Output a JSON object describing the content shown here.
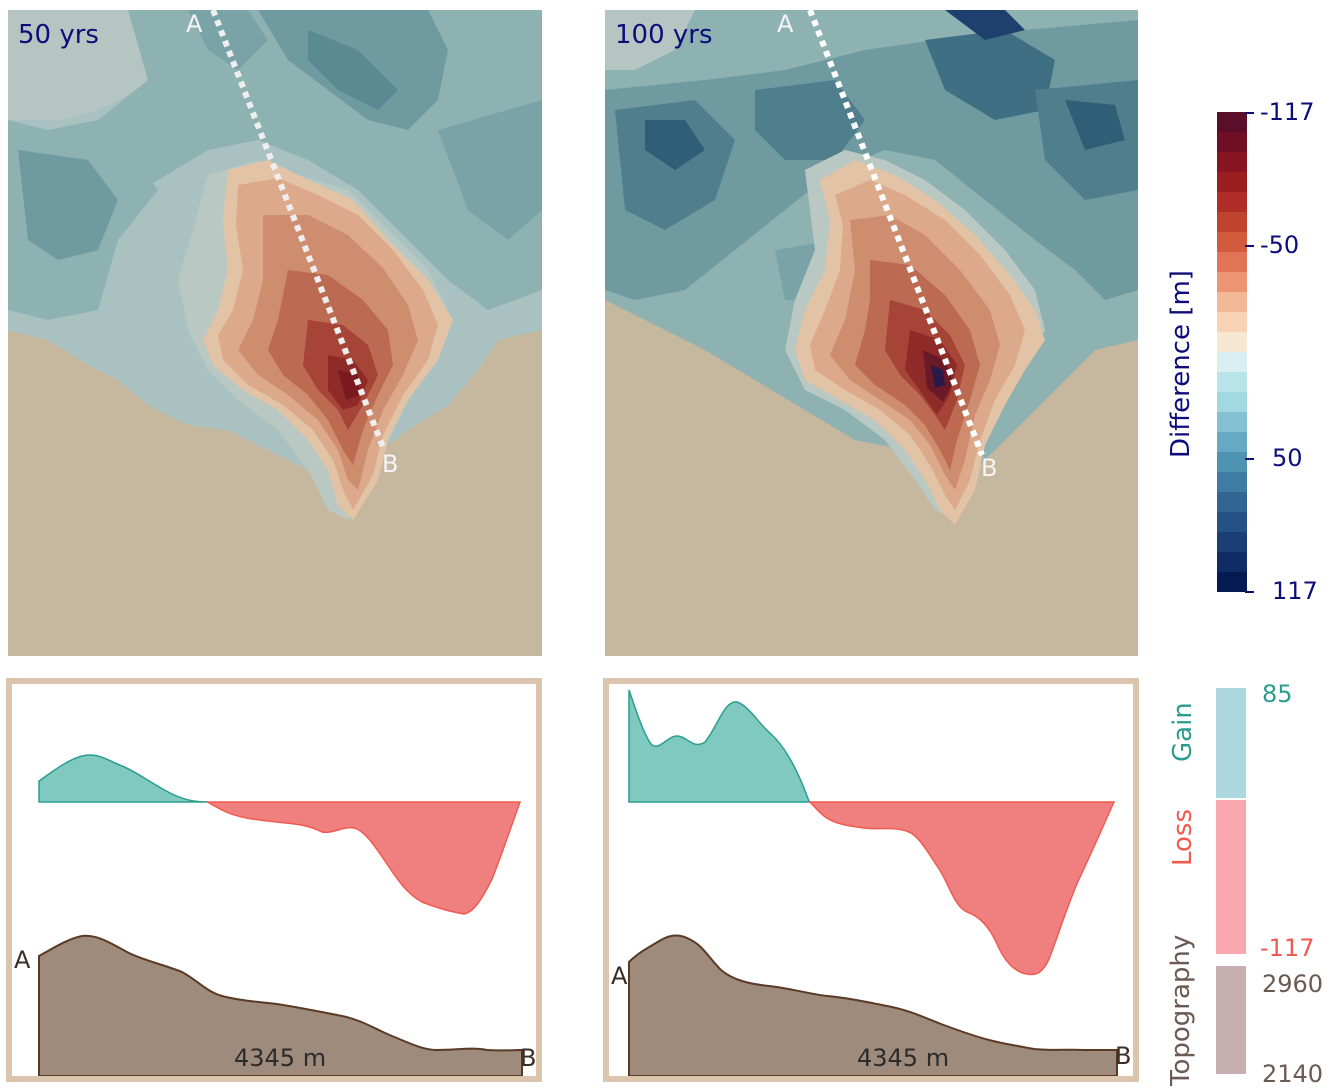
{
  "panels": [
    {
      "period_label": "50 yrs",
      "point_a": "A",
      "point_b": "B",
      "distance_label": "4345 m"
    },
    {
      "period_label": "100 yrs",
      "point_a": "A",
      "point_b": "B",
      "distance_label": "4345 m"
    }
  ],
  "difference_colorbar": {
    "title": "Difference [m]",
    "ticks": [
      "-117",
      "-50",
      "50",
      "117"
    ],
    "tick_values": [
      -117,
      -50,
      50,
      117
    ],
    "title_color": "#0d0d7a"
  },
  "profile_legend": {
    "gain_label": "Gain",
    "loss_label": "Loss",
    "topography_label": "Topography",
    "gain_max": "85",
    "loss_min": "-117",
    "topo_max": "2960",
    "topo_min": "2140",
    "gain_color": "#2a9d8f",
    "loss_color": "#f05a4f",
    "topo_color": "#6b5a52"
  },
  "colors": {
    "terrain": "#c5b89e",
    "frame": "#dbc6ad",
    "gain_fill": "#7fc9c1",
    "loss_fill": "#f08080",
    "topo_fill": "#9f8b7c"
  }
}
